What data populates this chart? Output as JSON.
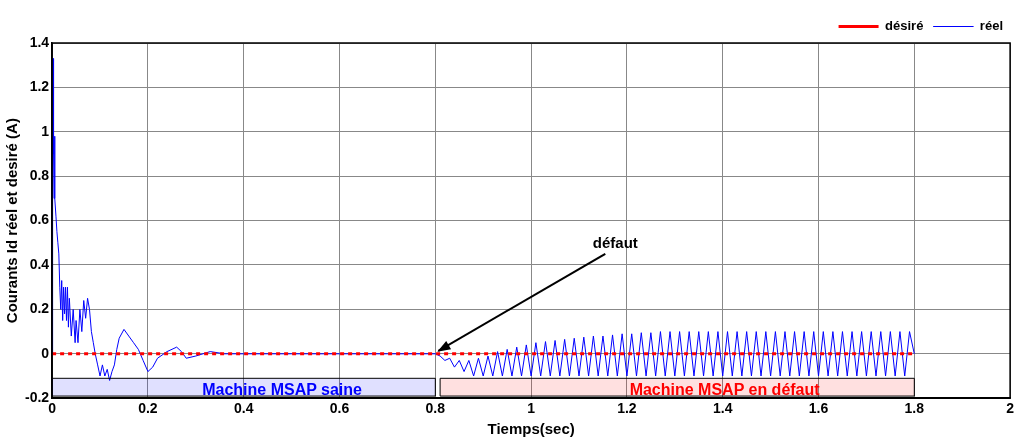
{
  "chart_data": {
    "type": "line",
    "xlabel": "Tiemps(sec)",
    "ylabel": "Courants Id réel et desiré (A)",
    "xlim": [
      0,
      2
    ],
    "xticks": [
      0,
      0.2,
      0.4,
      0.6,
      0.8,
      1,
      1.2,
      1.4,
      1.6,
      1.8,
      2
    ],
    "ylim": [
      -0.2,
      1.4
    ],
    "yticks": [
      -0.2,
      0,
      0.2,
      0.4,
      0.6,
      0.8,
      1,
      1.2,
      1.4
    ],
    "grid": true,
    "legend": "top right",
    "marker": "none",
    "series": [
      {
        "name": "désiré",
        "color": "#ff0000",
        "line_style": "dotted",
        "x": [
          0,
          1.8
        ],
        "values": [
          0,
          0
        ]
      },
      {
        "name": "réel",
        "color": "#0000ff",
        "line_style": "solid",
        "x": [
          0,
          0.001,
          0.002,
          0.003,
          0.004,
          0.005,
          0.006,
          0.008,
          0.01,
          0.012,
          0.014,
          0.016,
          0.018,
          0.02,
          0.022,
          0.024,
          0.026,
          0.028,
          0.03,
          0.032,
          0.034,
          0.036,
          0.04,
          0.044,
          0.048,
          0.05,
          0.054,
          0.058,
          0.062,
          0.066,
          0.07,
          0.074,
          0.078,
          0.082,
          0.086,
          0.09,
          0.095,
          0.1,
          0.105,
          0.11,
          0.115,
          0.12,
          0.125,
          0.13,
          0.135,
          0.14,
          0.15,
          0.16,
          0.17,
          0.18,
          0.19,
          0.2,
          0.21,
          0.22,
          0.24,
          0.26,
          0.27,
          0.28,
          0.3,
          0.33,
          0.36,
          0.4,
          0.5,
          0.6,
          0.7,
          0.8,
          0.81,
          0.82,
          0.83,
          0.84,
          0.85,
          0.86,
          0.87,
          0.88,
          0.89,
          0.9,
          0.91,
          0.92,
          0.93,
          0.94,
          0.95,
          0.96,
          0.97,
          0.98,
          0.99,
          1,
          1.01,
          1.02,
          1.03,
          1.04,
          1.05,
          1.06,
          1.07,
          1.08,
          1.09,
          1.1,
          1.11,
          1.12,
          1.13,
          1.14,
          1.15,
          1.16,
          1.17,
          1.18,
          1.19,
          1.2,
          1.21,
          1.22,
          1.23,
          1.24,
          1.25,
          1.26,
          1.27,
          1.28,
          1.29,
          1.3,
          1.31,
          1.32,
          1.33,
          1.34,
          1.35,
          1.36,
          1.37,
          1.38,
          1.39,
          1.4,
          1.41,
          1.42,
          1.43,
          1.44,
          1.45,
          1.46,
          1.47,
          1.48,
          1.49,
          1.5,
          1.51,
          1.52,
          1.53,
          1.54,
          1.55,
          1.56,
          1.57,
          1.58,
          1.59,
          1.6,
          1.61,
          1.62,
          1.63,
          1.64,
          1.65,
          1.66,
          1.67,
          1.68,
          1.69,
          1.7,
          1.71,
          1.72,
          1.73,
          1.74,
          1.75,
          1.76,
          1.77,
          1.78,
          1.79,
          1.8
        ],
        "values": [
          0,
          1.0,
          1.33,
          0.9,
          0.7,
          0.98,
          0.7,
          0.62,
          0.55,
          0.5,
          0.45,
          0.3,
          0.2,
          0.33,
          0.15,
          0.3,
          0.18,
          0.3,
          0.15,
          0.3,
          0.12,
          0.25,
          0.08,
          0.2,
          0.05,
          0.15,
          0.05,
          0.2,
          0.1,
          0.24,
          0.16,
          0.25,
          0.2,
          0.1,
          0.05,
          0.0,
          -0.05,
          -0.1,
          -0.05,
          -0.1,
          -0.07,
          -0.12,
          -0.08,
          -0.05,
          0.02,
          0.07,
          0.11,
          0.08,
          0.05,
          0.02,
          -0.03,
          -0.08,
          -0.06,
          -0.02,
          0.01,
          0.03,
          0.01,
          -0.02,
          -0.01,
          0.01,
          0,
          0,
          0,
          0,
          0,
          0,
          -0.01,
          -0.03,
          -0.02,
          -0.06,
          -0.03,
          -0.08,
          -0.03,
          -0.1,
          -0.02,
          -0.1,
          -0.01,
          -0.1,
          0.01,
          -0.1,
          0.02,
          -0.1,
          0.03,
          -0.1,
          0.04,
          -0.1,
          0.05,
          -0.1,
          0.055,
          -0.1,
          0.06,
          -0.1,
          0.065,
          -0.1,
          0.07,
          -0.1,
          0.075,
          -0.1,
          0.08,
          -0.1,
          0.08,
          -0.1,
          0.085,
          -0.1,
          0.09,
          -0.1,
          0.09,
          -0.1,
          0.095,
          -0.1,
          0.095,
          -0.1,
          0.1,
          -0.1,
          0.1,
          -0.1,
          0.1,
          -0.1,
          0.1,
          -0.1,
          0.1,
          -0.1,
          0.1,
          -0.1,
          0.1,
          -0.1,
          0.1,
          -0.1,
          0.1,
          -0.1,
          0.1,
          -0.1,
          0.1,
          -0.1,
          0.1,
          -0.1,
          0.1,
          -0.1,
          0.1,
          -0.1,
          0.1,
          -0.1,
          0.1,
          -0.1,
          0.1,
          -0.1,
          0.1,
          -0.1,
          0.1,
          -0.1,
          0.1,
          -0.1,
          0.1,
          -0.1,
          0.1,
          -0.1,
          0.1,
          -0.1,
          0.1,
          -0.1,
          0.1,
          -0.1,
          0.1,
          -0.1,
          0.1,
          0
        ]
      }
    ],
    "bands": [
      {
        "axis": "x",
        "from": 0,
        "to": 0.8,
        "label": "Machine MSAP saine",
        "color": "#0000ff"
      },
      {
        "axis": "x",
        "from": 0.81,
        "to": 1.8,
        "label": "Machine MSAP en défaut",
        "color": "#ff0000"
      }
    ],
    "annotations": [
      {
        "text": "défaut",
        "x": 0.8,
        "y": 0
      }
    ]
  }
}
